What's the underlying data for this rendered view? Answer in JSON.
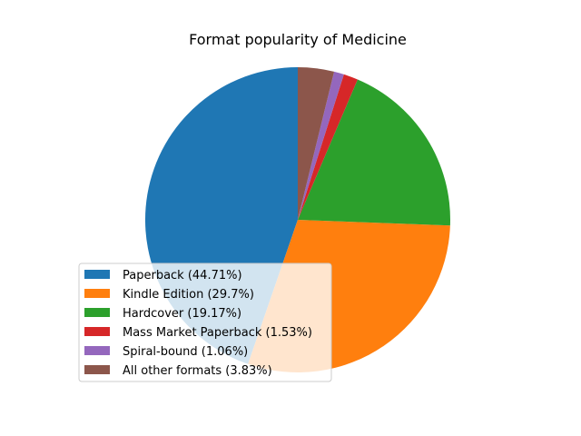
{
  "chart_data": {
    "type": "pie",
    "title": "Format popularity of Medicine",
    "slices": [
      {
        "label": "Paperback (44.71%)",
        "value": 44.71,
        "color": "#1f77b4"
      },
      {
        "label": "Kindle Edition (29.7%)",
        "value": 29.7,
        "color": "#ff7f0e"
      },
      {
        "label": "Hardcover (19.17%)",
        "value": 19.17,
        "color": "#2ca02c"
      },
      {
        "label": "Mass Market Paperback (1.53%)",
        "value": 1.53,
        "color": "#d62728"
      },
      {
        "label": "Spiral-bound (1.06%)",
        "value": 1.06,
        "color": "#9467bd"
      },
      {
        "label": "All other formats (3.83%)",
        "value": 3.83,
        "color": "#8c564b"
      }
    ],
    "start_angle": "top",
    "direction": "counterclockwise",
    "legend_position": "lower-left"
  }
}
